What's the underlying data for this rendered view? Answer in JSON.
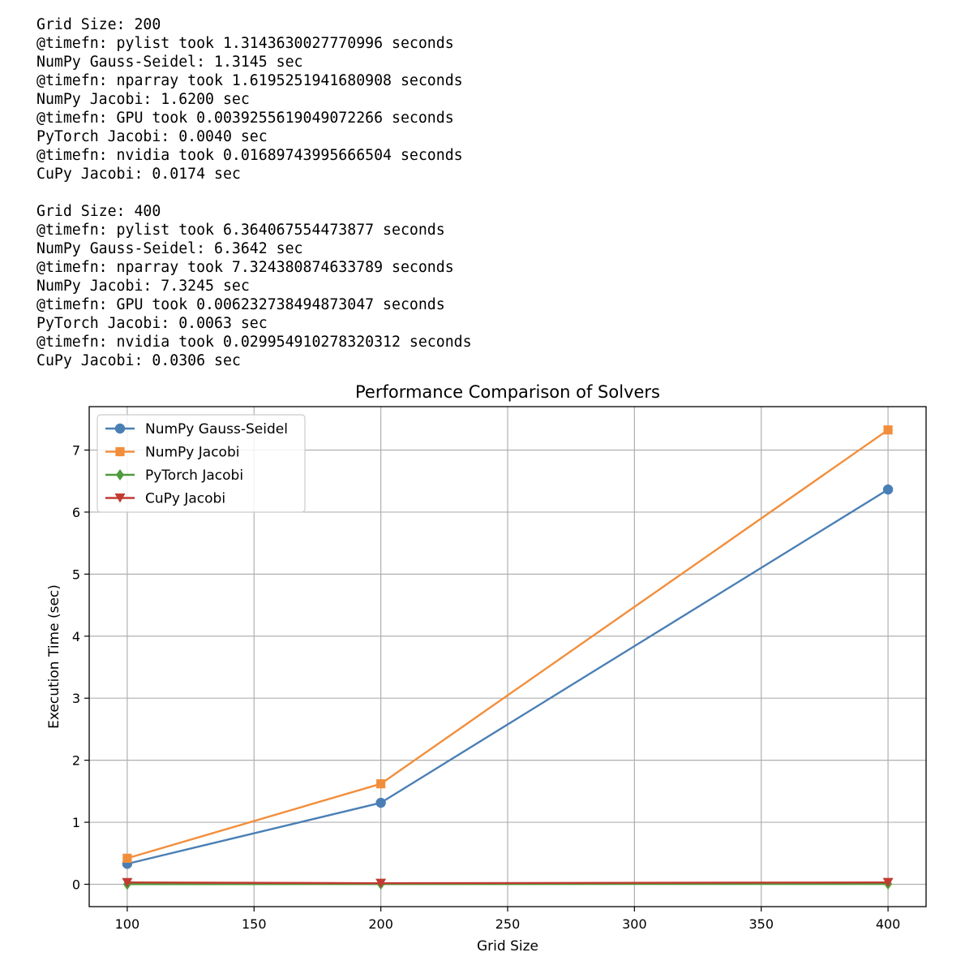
{
  "console": {
    "blocks": [
      {
        "lines": [
          "Grid Size: 200",
          "@timefn: pylist took 1.3143630027770996 seconds",
          "NumPy Gauss-Seidel: 1.3145 sec",
          "@timefn: nparray took 1.6195251941680908 seconds",
          "NumPy Jacobi: 1.6200 sec",
          "@timefn: GPU took 0.0039255619049072266 seconds",
          "PyTorch Jacobi: 0.0040 sec",
          "@timefn: nvidia took 0.01689743995666504 seconds",
          "CuPy Jacobi: 0.0174 sec"
        ]
      },
      {
        "lines": [
          "Grid Size: 400",
          "@timefn: pylist took 6.364067554473877 seconds",
          "NumPy Gauss-Seidel: 6.3642 sec",
          "@timefn: nparray took 7.324380874633789 seconds",
          "NumPy Jacobi: 7.3245 sec",
          "@timefn: GPU took 0.006232738494873047 seconds",
          "PyTorch Jacobi: 0.0063 sec",
          "@timefn: nvidia took 0.029954910278320312 seconds",
          "CuPy Jacobi: 0.0306 sec"
        ]
      }
    ]
  },
  "chart_data": {
    "type": "line",
    "title": "Performance Comparison of Solvers",
    "xlabel": "Grid Size",
    "ylabel": "Execution Time (sec)",
    "x": [
      100,
      200,
      400
    ],
    "xlim": [
      85,
      415
    ],
    "ylim": [
      -0.36,
      7.7
    ],
    "xticks": [
      100,
      150,
      200,
      250,
      300,
      350,
      400
    ],
    "yticks": [
      0,
      1,
      2,
      3,
      4,
      5,
      6,
      7
    ],
    "grid": true,
    "legend_position": "upper left",
    "series": [
      {
        "name": "NumPy Gauss-Seidel",
        "values": [
          0.33,
          1.3145,
          6.3642
        ],
        "color": "#4a7fb5",
        "marker": "circle"
      },
      {
        "name": "NumPy Jacobi",
        "values": [
          0.42,
          1.62,
          7.3245
        ],
        "color": "#f28e3b",
        "marker": "square"
      },
      {
        "name": "PyTorch Jacobi",
        "values": [
          0.002,
          0.004,
          0.0063
        ],
        "color": "#4e9c3b",
        "marker": "diamond"
      },
      {
        "name": "CuPy Jacobi",
        "values": [
          0.03,
          0.0174,
          0.0306
        ],
        "color": "#c23b32",
        "marker": "triangle-down"
      }
    ]
  }
}
